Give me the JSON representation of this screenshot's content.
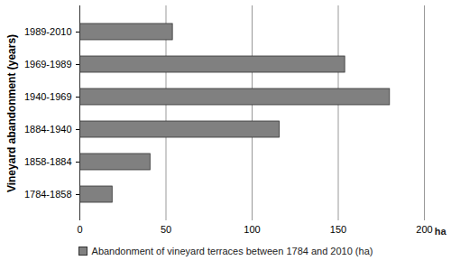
{
  "chart_data": {
    "type": "bar",
    "orientation": "horizontal",
    "series": [
      {
        "name": "Abandonment of vineyard terraces between 1784 and 2010 (ha)",
        "color": "#808080",
        "values": [
          19,
          41,
          116,
          180,
          154,
          54
        ]
      }
    ],
    "categories": [
      "1784-1858",
      "1858-1884",
      "1884-1940",
      "1940-1969",
      "1969-1989",
      "1989-2010"
    ],
    "y_label": "Vineyard abandonment (years)",
    "x_label": "ha",
    "xlim": [
      0,
      200
    ],
    "xticks": [
      0,
      50,
      100,
      150,
      200
    ],
    "grid": true,
    "legend": "bottom"
  }
}
